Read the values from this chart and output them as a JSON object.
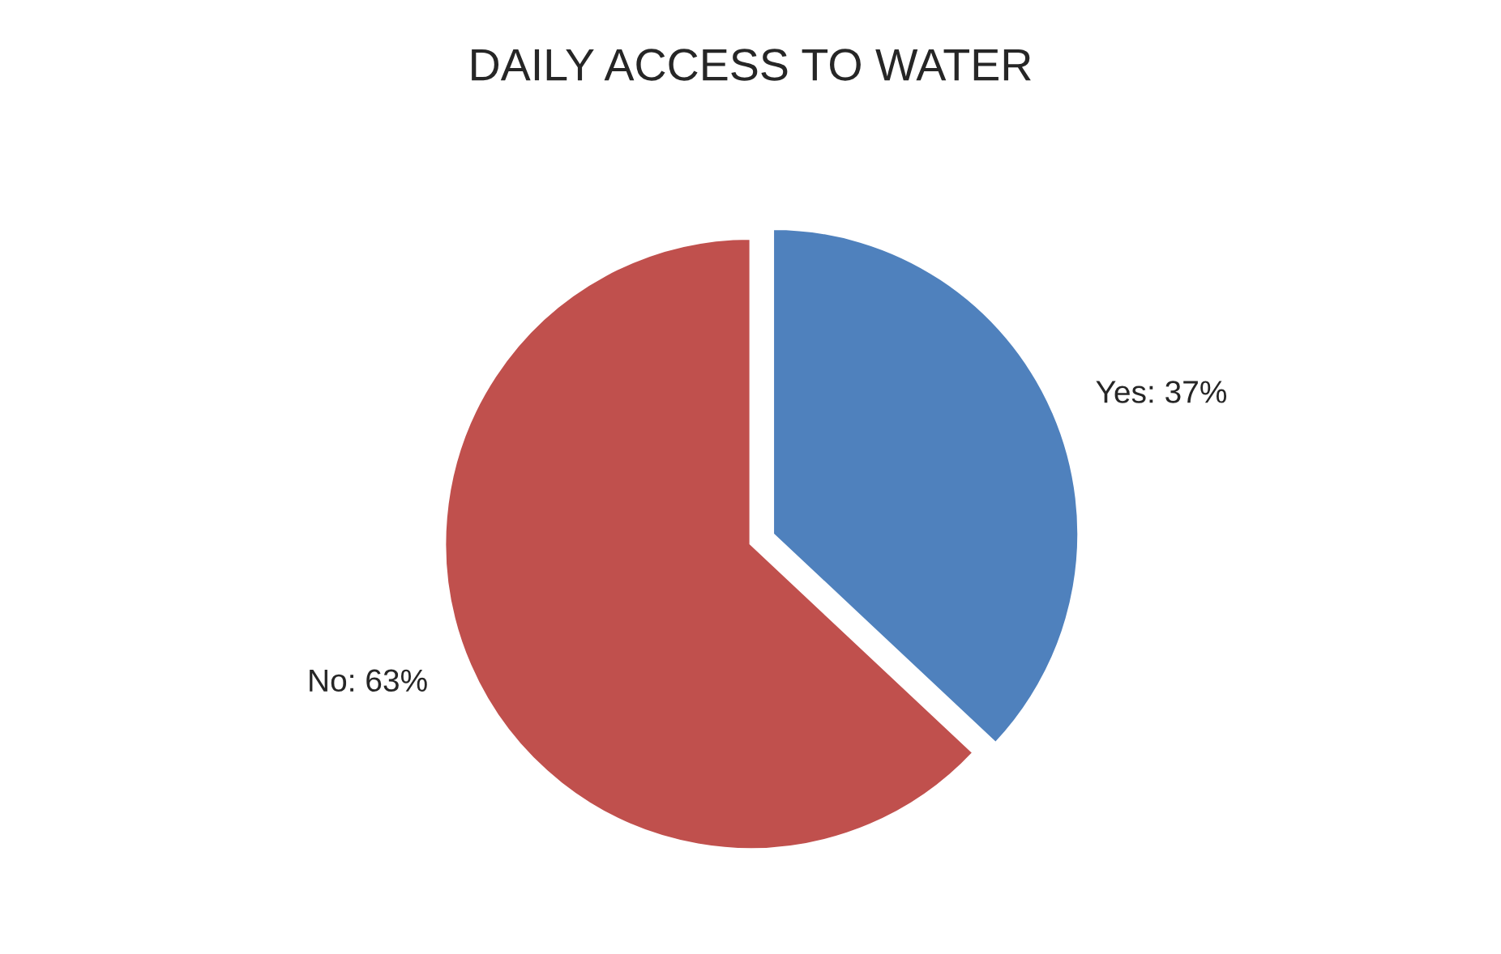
{
  "chart_data": {
    "type": "pie",
    "title": "DAILY ACCESS TO WATER",
    "categories": [
      "Yes",
      "No"
    ],
    "values": [
      37,
      63
    ],
    "colors": [
      "#4f81bd",
      "#c0504d"
    ],
    "value_labels": [
      "37%",
      "63%"
    ]
  }
}
